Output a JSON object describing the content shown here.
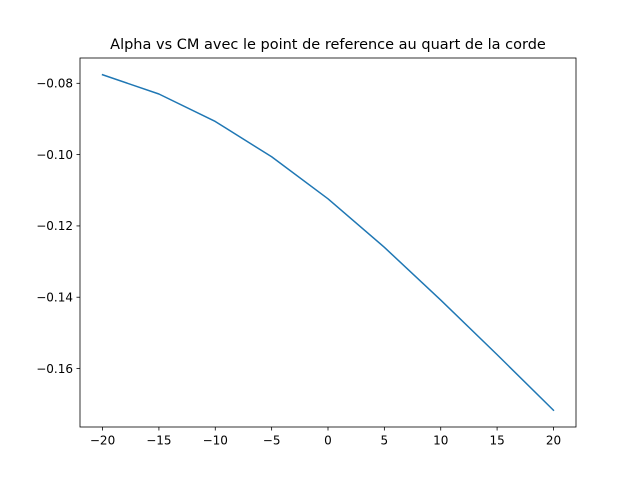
{
  "chart_data": {
    "type": "line",
    "title": "Alpha vs CM avec le point de reference au quart de la corde",
    "xlabel": "",
    "ylabel": "",
    "x": [
      -20,
      -15,
      -10,
      -5,
      0,
      5,
      10,
      15,
      20
    ],
    "series": [
      {
        "values": [
          -0.0776,
          -0.083,
          -0.0907,
          -0.1006,
          -0.1124,
          -0.126,
          -0.1408,
          -0.1561,
          -0.1717
        ],
        "color": "#1f77b4"
      }
    ],
    "xlim": [
      -22,
      22
    ],
    "ylim": [
      -0.1764,
      -0.0729
    ],
    "xticks": [
      -20,
      -15,
      -10,
      -5,
      0,
      5,
      10,
      15,
      20
    ],
    "xtick_labels": [
      "−20",
      "−15",
      "−10",
      "−5",
      "0",
      "5",
      "10",
      "15",
      "20"
    ],
    "yticks": [
      -0.08,
      -0.1,
      -0.12,
      -0.14,
      -0.16
    ],
    "ytick_labels": [
      "−0.08",
      "−0.10",
      "−0.12",
      "−0.14",
      "−0.16"
    ],
    "grid": false,
    "legend": "none"
  }
}
